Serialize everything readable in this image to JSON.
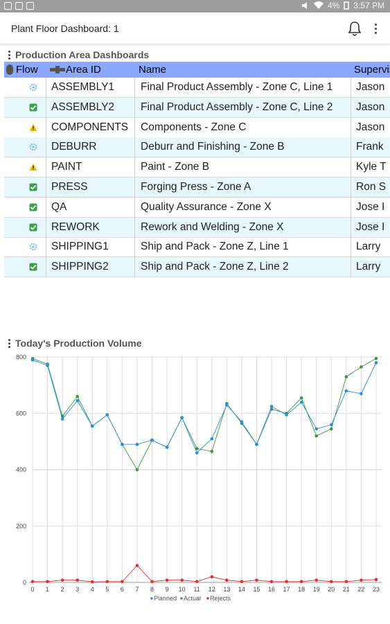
{
  "statusbar": {
    "battery": "4%",
    "time": "3:57 PM"
  },
  "app": {
    "title": "Plant Floor Dashboard: 1"
  },
  "areas": {
    "title": "Production Area Dashboards",
    "columns": [
      "Flow",
      "Area ID",
      "Name",
      "Supervisor"
    ],
    "rows": [
      {
        "status": "running",
        "area_id": "ASSEMBLY1",
        "name": "Final Product Assembly - Zone C, Line 1",
        "supervisor": "Jason"
      },
      {
        "status": "ok",
        "area_id": "ASSEMBLY2",
        "name": "Final Product Assembly - Zone C, Line 2",
        "supervisor": "Jason"
      },
      {
        "status": "warning",
        "area_id": "COMPONENTS",
        "name": "Components - Zone C",
        "supervisor": "Jason"
      },
      {
        "status": "running",
        "area_id": "DEBURR",
        "name": "Deburr and Finishing - Zone B",
        "supervisor": "Frank"
      },
      {
        "status": "warning",
        "area_id": "PAINT",
        "name": "Paint - Zone B",
        "supervisor": "Kyle T"
      },
      {
        "status": "ok",
        "area_id": "PRESS",
        "name": "Forging Press - Zone A",
        "supervisor": "Ron S"
      },
      {
        "status": "ok",
        "area_id": "QA",
        "name": "Quality Assurance - Zone X",
        "supervisor": "Jose I"
      },
      {
        "status": "ok",
        "area_id": "REWORK",
        "name": "Rework and Welding - Zone X",
        "supervisor": "Jose I"
      },
      {
        "status": "running",
        "area_id": "SHIPPING1",
        "name": "Ship and Pack - Zone Z, Line 1",
        "supervisor": "Larry"
      },
      {
        "status": "ok",
        "area_id": "SHIPPING2",
        "name": "Ship and Pack - Zone Z, Line 2",
        "supervisor": "Larry"
      }
    ]
  },
  "volume": {
    "title": "Today's Production Volume"
  },
  "colors": {
    "header": "#8aa8ff",
    "alt_row": "#e6f8fd",
    "planned": "#2b8de0",
    "actual": "#3a9a3a",
    "rejects": "#e03030",
    "warning": "#f0c000",
    "ok": "#3aa04a",
    "running": "#7ab8e8"
  },
  "chart_data": {
    "type": "line",
    "x": [
      0,
      1,
      2,
      3,
      4,
      5,
      6,
      7,
      8,
      9,
      10,
      11,
      12,
      13,
      14,
      15,
      16,
      17,
      18,
      19,
      20,
      21,
      22,
      23
    ],
    "ylim": [
      0,
      800
    ],
    "yticks": [
      0,
      200,
      400,
      600,
      800
    ],
    "grid": true,
    "legend": "bottom",
    "series": [
      {
        "name": "Planned",
        "values": [
          790,
          770,
          580,
          645,
          555,
          595,
          490,
          490,
          505,
          480,
          585,
          460,
          510,
          630,
          570,
          490,
          625,
          595,
          640,
          545,
          560,
          680,
          670,
          780
        ]
      },
      {
        "name": "Actual",
        "values": [
          795,
          775,
          590,
          660,
          555,
          595,
          490,
          400,
          505,
          480,
          585,
          475,
          465,
          635,
          565,
          490,
          615,
          600,
          655,
          520,
          545,
          730,
          765,
          795
        ]
      },
      {
        "name": "Rejects",
        "values": [
          3,
          3,
          8,
          8,
          2,
          3,
          3,
          60,
          3,
          8,
          8,
          3,
          20,
          8,
          3,
          8,
          3,
          3,
          3,
          8,
          3,
          3,
          8,
          10
        ]
      }
    ]
  }
}
